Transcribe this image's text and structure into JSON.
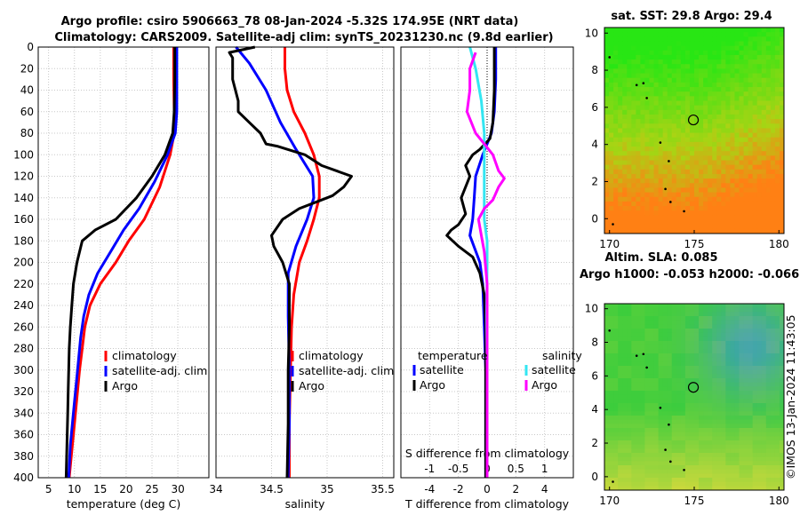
{
  "titles": {
    "line1": "Argo profile: csiro 5906663_78 08-Jan-2024 -5.32S 174.95E (NRT data)",
    "line2": "Climatology: CARS2009. Satellite-adj clim: synTS_20231230.nc (9.8d earlier)",
    "sst": "sat. SST: 29.8 Argo: 29.4",
    "sla1": "Altim. SLA: 0.085",
    "sla2": "Argo h1000: -0.053 h2000: -0.066",
    "side": "©IMOS 13-Jan-2024 11:43:05"
  },
  "colors": {
    "climatology": "#ff0000",
    "satellite": "#0000ff",
    "argo": "#000000",
    "sal_sat": "#33e6f2",
    "sal_argo": "#ff00ff"
  },
  "chart_data": [
    {
      "type": "line",
      "name": "temperature profile",
      "xlabel": "temperature (deg C)",
      "xlim": [
        3,
        36
      ],
      "xticks": [
        5,
        10,
        15,
        20,
        25,
        30
      ],
      "ylim": [
        400,
        0
      ],
      "yticks": [
        0,
        20,
        40,
        60,
        80,
        100,
        120,
        140,
        160,
        180,
        200,
        220,
        240,
        260,
        280,
        300,
        320,
        340,
        360,
        380,
        400
      ],
      "legend": [
        "climatology",
        "satellite-adj. clim",
        "Argo"
      ],
      "series": [
        {
          "name": "climatology",
          "color": "#ff0000",
          "points": [
            [
              29.2,
              0
            ],
            [
              29.2,
              30
            ],
            [
              29.3,
              60
            ],
            [
              29.3,
              80
            ],
            [
              28.5,
              100
            ],
            [
              26.5,
              130
            ],
            [
              23.5,
              160
            ],
            [
              20.5,
              180
            ],
            [
              18,
              200
            ],
            [
              15,
              220
            ],
            [
              13,
              240
            ],
            [
              12,
              260
            ],
            [
              11.5,
              280
            ],
            [
              11,
              300
            ],
            [
              10.6,
              320
            ],
            [
              10.2,
              340
            ],
            [
              9.8,
              360
            ],
            [
              9.4,
              380
            ],
            [
              9,
              400
            ]
          ]
        },
        {
          "name": "satellite-adj. clim",
          "color": "#0000ff",
          "points": [
            [
              29.8,
              0
            ],
            [
              29.8,
              30
            ],
            [
              29.8,
              60
            ],
            [
              29.5,
              80
            ],
            [
              28,
              100
            ],
            [
              25.5,
              125
            ],
            [
              22.5,
              150
            ],
            [
              19.5,
              170
            ],
            [
              17,
              190
            ],
            [
              14.5,
              210
            ],
            [
              12.8,
              230
            ],
            [
              11.8,
              250
            ],
            [
              11.2,
              270
            ],
            [
              10.8,
              290
            ],
            [
              10.4,
              310
            ],
            [
              10,
              330
            ],
            [
              9.6,
              350
            ],
            [
              9.2,
              370
            ],
            [
              8.9,
              400
            ]
          ]
        },
        {
          "name": "Argo",
          "color": "#000000",
          "points": [
            [
              29.4,
              0
            ],
            [
              29.4,
              30
            ],
            [
              29.3,
              60
            ],
            [
              29,
              80
            ],
            [
              27.5,
              100
            ],
            [
              25,
              120
            ],
            [
              22,
              140
            ],
            [
              18,
              160
            ],
            [
              14,
              170
            ],
            [
              11.5,
              180
            ],
            [
              10.5,
              200
            ],
            [
              9.8,
              220
            ],
            [
              9.5,
              240
            ],
            [
              9.2,
              260
            ],
            [
              9,
              280
            ],
            [
              8.9,
              300
            ],
            [
              8.8,
              320
            ],
            [
              8.7,
              340
            ],
            [
              8.6,
              360
            ],
            [
              8.5,
              380
            ],
            [
              8.4,
              400
            ]
          ]
        }
      ]
    },
    {
      "type": "line",
      "name": "salinity profile",
      "xlabel": "salinity",
      "xlim": [
        34,
        35.6
      ],
      "xticks": [
        34,
        34.5,
        35,
        35.5
      ],
      "xticklabels": [
        "34",
        "34.5",
        "35",
        "35.5"
      ],
      "ylim": [
        400,
        0
      ],
      "legend": [
        "climatology",
        "satellite-adj. clim",
        "Argo"
      ],
      "series": [
        {
          "name": "climatology",
          "color": "#ff0000",
          "points": [
            [
              34.62,
              0
            ],
            [
              34.62,
              20
            ],
            [
              34.64,
              40
            ],
            [
              34.7,
              60
            ],
            [
              34.8,
              80
            ],
            [
              34.88,
              100
            ],
            [
              34.93,
              120
            ],
            [
              34.93,
              140
            ],
            [
              34.88,
              160
            ],
            [
              34.82,
              180
            ],
            [
              34.75,
              200
            ],
            [
              34.7,
              230
            ],
            [
              34.68,
              260
            ],
            [
              34.67,
              300
            ],
            [
              34.66,
              350
            ],
            [
              34.66,
              400
            ]
          ]
        },
        {
          "name": "satellite-adj. clim",
          "color": "#0000ff",
          "points": [
            [
              34.18,
              0
            ],
            [
              34.3,
              15
            ],
            [
              34.45,
              40
            ],
            [
              34.58,
              70
            ],
            [
              34.72,
              95
            ],
            [
              34.87,
              120
            ],
            [
              34.88,
              140
            ],
            [
              34.82,
              160
            ],
            [
              34.72,
              185
            ],
            [
              34.65,
              210
            ],
            [
              34.65,
              250
            ],
            [
              34.66,
              300
            ],
            [
              34.66,
              350
            ],
            [
              34.65,
              400
            ]
          ]
        },
        {
          "name": "Argo",
          "color": "#000000",
          "points": [
            [
              34.35,
              0
            ],
            [
              34.12,
              5
            ],
            [
              34.15,
              10
            ],
            [
              34.15,
              30
            ],
            [
              34.2,
              50
            ],
            [
              34.2,
              60
            ],
            [
              34.3,
              70
            ],
            [
              34.4,
              80
            ],
            [
              34.45,
              90
            ],
            [
              34.55,
              92
            ],
            [
              34.8,
              100
            ],
            [
              34.95,
              110
            ],
            [
              35.22,
              120
            ],
            [
              35.15,
              130
            ],
            [
              35.05,
              138
            ],
            [
              34.95,
              142
            ],
            [
              34.75,
              150
            ],
            [
              34.6,
              160
            ],
            [
              34.5,
              175
            ],
            [
              34.52,
              185
            ],
            [
              34.6,
              200
            ],
            [
              34.66,
              220
            ],
            [
              34.66,
              260
            ],
            [
              34.65,
              300
            ],
            [
              34.65,
              350
            ],
            [
              34.64,
              400
            ]
          ]
        }
      ]
    },
    {
      "type": "line",
      "name": "difference from climatology",
      "xlabel": "T difference from climatology",
      "top_label": "S difference from climatology",
      "xlim": [
        -6,
        6
      ],
      "xticks": [
        -4,
        -2,
        0,
        2,
        4
      ],
      "s_ticks": [
        -1,
        -0.5,
        0,
        0.5,
        1
      ],
      "s_ticklabels": [
        "-1",
        "-0.5",
        "0",
        "0.5",
        "1"
      ],
      "ylim": [
        400,
        0
      ],
      "legend_temperature_title": "temperature",
      "legend_salinity_title": "salinity",
      "legend_temperature": [
        "satellite",
        "Argo"
      ],
      "legend_salinity": [
        "satellite",
        "Argo"
      ],
      "series": [
        {
          "name": "T satellite",
          "color": "#0000ff",
          "points": [
            [
              0.6,
              0
            ],
            [
              0.6,
              30
            ],
            [
              0.5,
              60
            ],
            [
              0.3,
              80
            ],
            [
              -0.3,
              100
            ],
            [
              -0.8,
              120
            ],
            [
              -0.9,
              140
            ],
            [
              -1,
              160
            ],
            [
              -1.2,
              175
            ],
            [
              -0.5,
              200
            ],
            [
              -0.3,
              220
            ],
            [
              -0.2,
              260
            ],
            [
              -0.1,
              300
            ],
            [
              -0.1,
              350
            ],
            [
              -0.1,
              400
            ]
          ]
        },
        {
          "name": "T Argo",
          "color": "#000000",
          "points": [
            [
              0.5,
              0
            ],
            [
              0.5,
              40
            ],
            [
              0.4,
              70
            ],
            [
              0.2,
              85
            ],
            [
              -0.5,
              95
            ],
            [
              -1,
              100
            ],
            [
              -1.5,
              110
            ],
            [
              -1.2,
              120
            ],
            [
              -1.8,
              140
            ],
            [
              -1.5,
              155
            ],
            [
              -2,
              165
            ],
            [
              -2.5,
              170
            ],
            [
              -2.8,
              175
            ],
            [
              -2,
              185
            ],
            [
              -1,
              195
            ],
            [
              -0.5,
              210
            ],
            [
              -0.2,
              230
            ],
            [
              -0.1,
              260
            ],
            [
              -0.1,
              300
            ],
            [
              -0.1,
              350
            ],
            [
              -0.1,
              400
            ]
          ]
        },
        {
          "name": "S satellite",
          "color": "#33e6f2",
          "points": [
            [
              -0.3,
              0
            ],
            [
              -0.2,
              20
            ],
            [
              -0.1,
              50
            ],
            [
              -0.05,
              80
            ],
            [
              -0.05,
              110
            ],
            [
              -0.05,
              140
            ],
            [
              -0.05,
              160
            ],
            [
              0,
              180
            ],
            [
              0,
              200
            ],
            [
              -0.01,
              250
            ],
            [
              0,
              300
            ],
            [
              0,
              350
            ],
            [
              0,
              400
            ]
          ]
        },
        {
          "name": "S Argo",
          "color": "#ff00ff",
          "points": [
            [
              -0.2,
              5
            ],
            [
              -0.3,
              20
            ],
            [
              -0.3,
              40
            ],
            [
              -0.35,
              60
            ],
            [
              -0.2,
              80
            ],
            [
              -0.05,
              90
            ],
            [
              0.1,
              100
            ],
            [
              0.2,
              115
            ],
            [
              0.3,
              122
            ],
            [
              0.2,
              130
            ],
            [
              0.1,
              142
            ],
            [
              -0.05,
              150
            ],
            [
              -0.15,
              160
            ],
            [
              -0.1,
              175
            ],
            [
              -0.05,
              190
            ],
            [
              0,
              220
            ],
            [
              0,
              260
            ],
            [
              0,
              300
            ],
            [
              0,
              350
            ],
            [
              0,
              400
            ]
          ]
        }
      ]
    },
    {
      "type": "heatmap",
      "name": "satellite SST map",
      "title": "sat. SST: 29.8 Argo: 29.4",
      "xticks": [
        170,
        175,
        180
      ],
      "yticks": [
        0,
        2,
        4,
        6,
        8,
        10
      ],
      "xlim": [
        169.7,
        180.3
      ],
      "ylim": [
        -0.8,
        10.3
      ],
      "argo_position": [
        174.95,
        5.32
      ]
    },
    {
      "type": "heatmap",
      "name": "altimetry SLA map",
      "title": "Altim. SLA: 0.085",
      "subtitle": "Argo h1000: -0.053 h2000: -0.066",
      "xticks": [
        170,
        175,
        180
      ],
      "yticks": [
        0,
        2,
        4,
        6,
        8,
        10
      ],
      "xlim": [
        169.7,
        180.3
      ],
      "ylim": [
        -0.8,
        10.3
      ],
      "argo_position": [
        174.95,
        5.32
      ]
    }
  ]
}
